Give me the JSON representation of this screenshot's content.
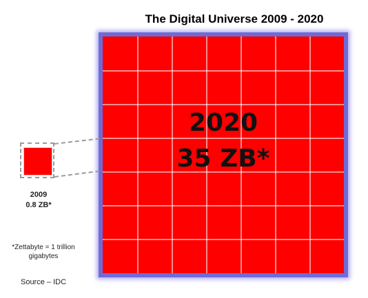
{
  "title": "The Digital Universe 2009 - 2020",
  "big_box": {
    "year": "2020",
    "size": "35 ZB*"
  },
  "small_box": {
    "year": "2009",
    "size": "0.8 ZB*"
  },
  "footnote": "*Zettabyte = 1 trillion gigabytes",
  "source": "Source – IDC",
  "colors": {
    "fill": "#ff0000",
    "frame": "#6f6bd6"
  }
}
